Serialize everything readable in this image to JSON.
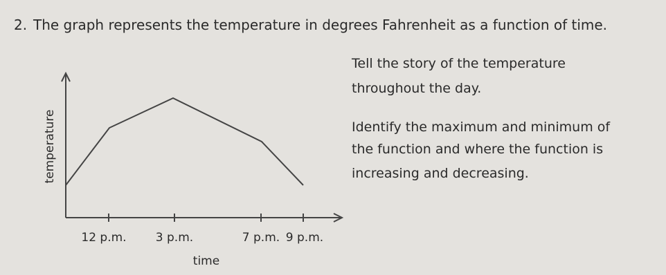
{
  "question": {
    "number": "2.",
    "text": "The graph represents the temperature in degrees Fahrenheit as a function of time."
  },
  "prompt": [
    "Tell the story of the temperature",
    "throughout the day.",
    "Identify the maximum and minimum of",
    "the function and where the function is",
    "increasing and decreasing."
  ],
  "graph": {
    "y_label": "temperature",
    "x_label": "time",
    "x_ticks": [
      "12 p.m.",
      "3 p.m.",
      "7 p.m.",
      "9 p.m."
    ]
  }
}
